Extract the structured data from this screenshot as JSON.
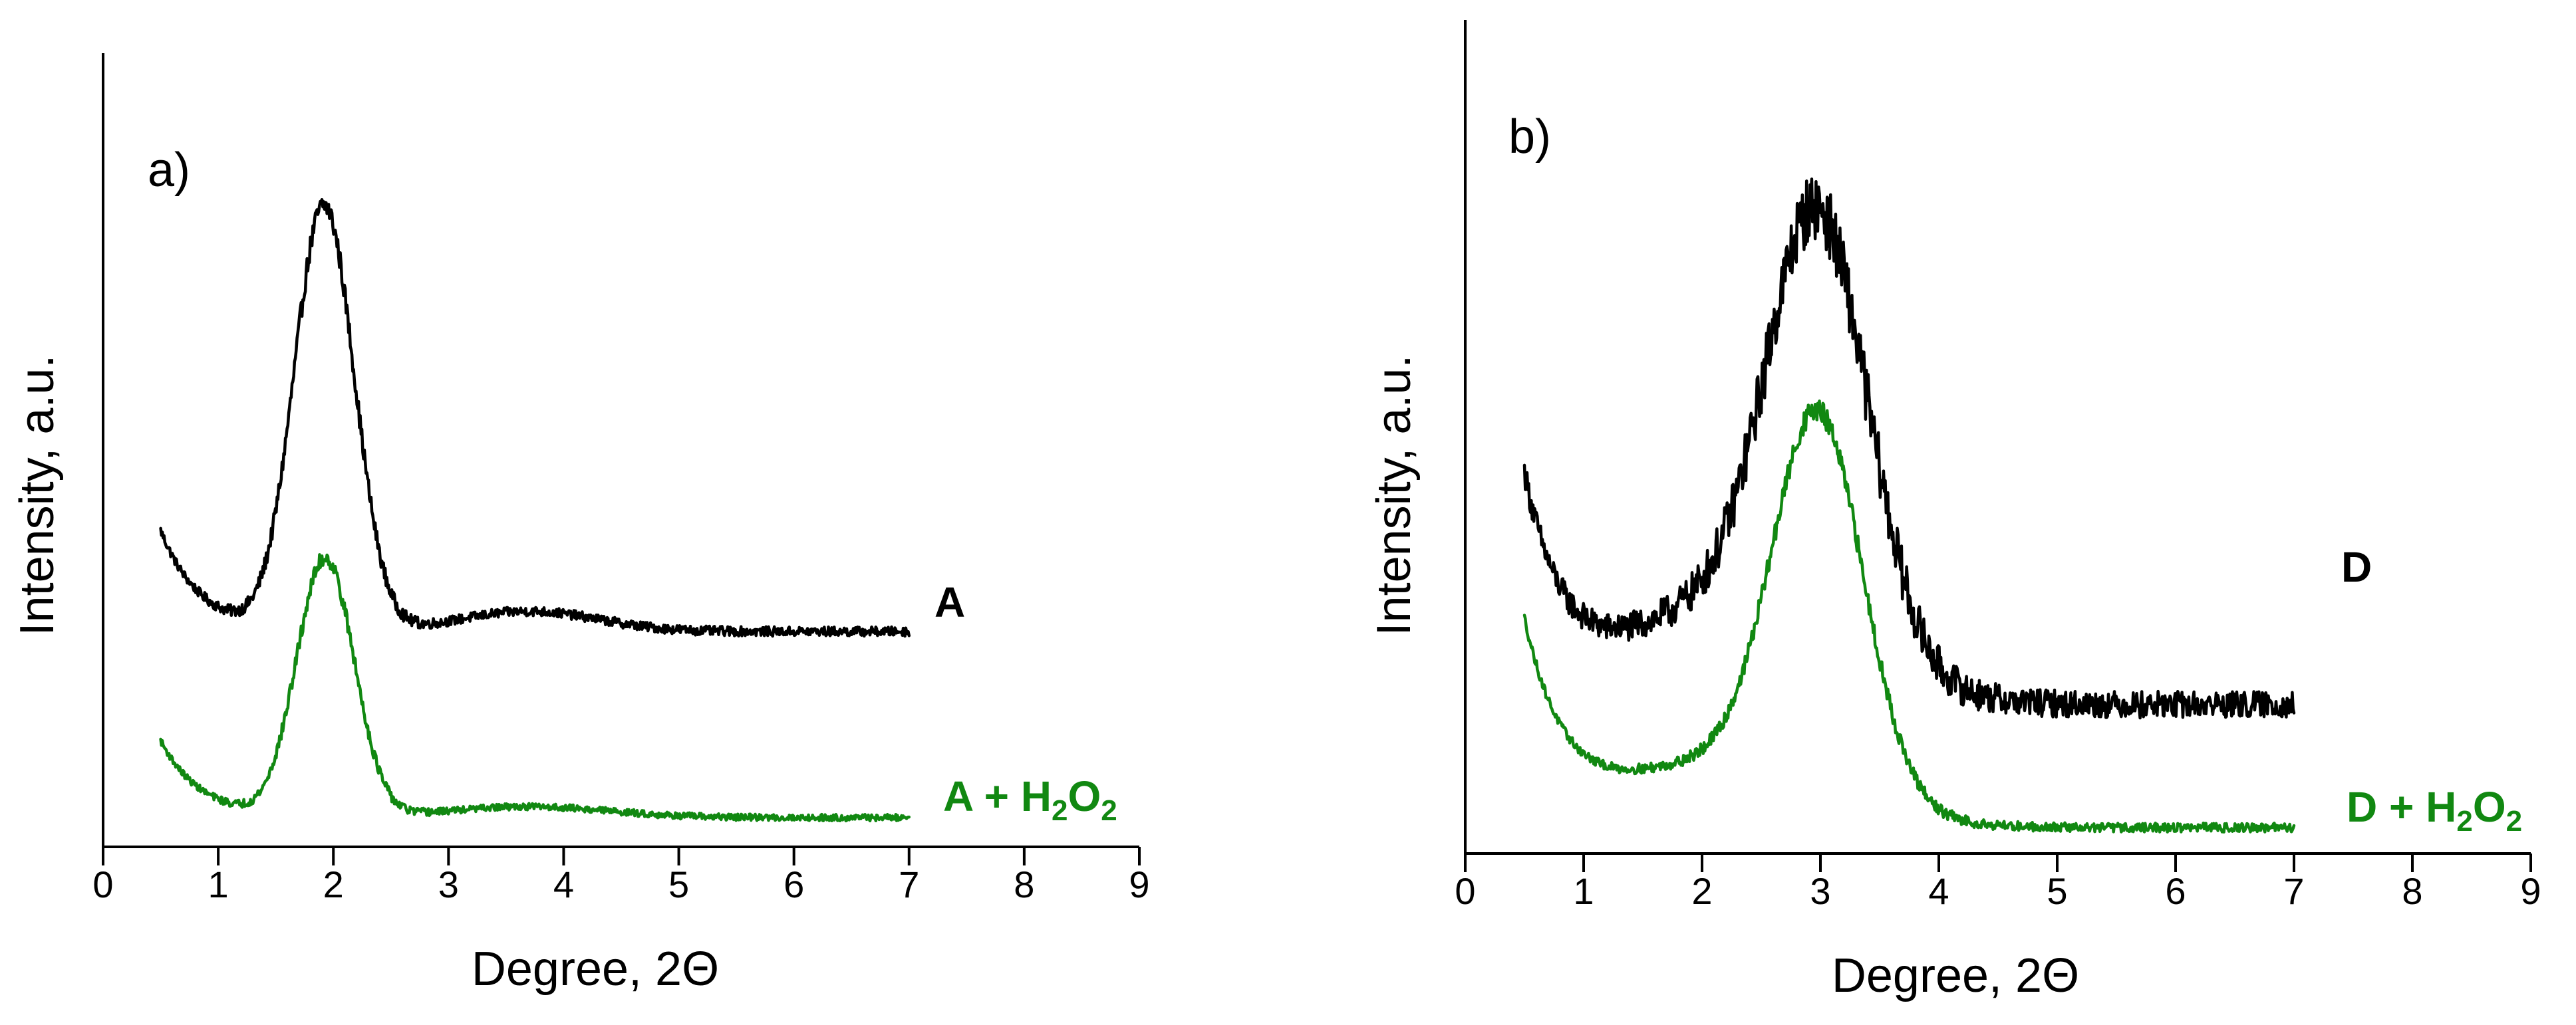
{
  "colors": {
    "black_series": "#000000",
    "green_series": "#118811"
  },
  "chart_data": [
    {
      "type": "line",
      "panel_label": "a)",
      "xlabel": "Degree, 2Θ",
      "ylabel": "Intensity, a.u.",
      "xlim": [
        0,
        9
      ],
      "ylim": [
        0,
        1
      ],
      "x_ticks": [
        "0",
        "1",
        "2",
        "3",
        "4",
        "5",
        "6",
        "7",
        "8",
        "9"
      ],
      "y_ticks": [],
      "series": [
        {
          "name": "A",
          "label_parts": [
            "A"
          ],
          "color_key": "black_series",
          "x_range": [
            0.5,
            7.0
          ],
          "baseline": 0.28,
          "start_level": 0.43,
          "end_level": 0.28,
          "noise": 0.007,
          "peaks": [
            {
              "center": 1.92,
              "width": 0.26,
              "height": 0.63
            },
            {
              "center": 3.7,
              "width": 0.6,
              "height": 0.03
            }
          ]
        },
        {
          "name": "A + H2O2",
          "label_parts": [
            "A + H",
            "2",
            "O",
            "2"
          ],
          "color_key": "green_series",
          "x_range": [
            0.5,
            7.0
          ],
          "baseline": 0.04,
          "start_level": 0.18,
          "end_level": 0.04,
          "noise": 0.006,
          "peaks": [
            {
              "center": 1.93,
              "width": 0.25,
              "height": 0.47
            },
            {
              "center": 3.7,
              "width": 0.7,
              "height": 0.02
            }
          ]
        }
      ]
    },
    {
      "type": "line",
      "panel_label": "b)",
      "xlabel": "Degree, 2Θ",
      "ylabel": "Intensity, a.u.",
      "xlim": [
        0,
        9
      ],
      "ylim": [
        0,
        1
      ],
      "x_ticks": [
        "0",
        "1",
        "2",
        "3",
        "4",
        "5",
        "6",
        "7",
        "8",
        "9"
      ],
      "y_ticks": [],
      "series": [
        {
          "name": "D",
          "label_parts": [
            "D"
          ],
          "color_key": "black_series",
          "x_range": [
            0.5,
            7.0
          ],
          "baseline": 0.35,
          "start_level": 0.6,
          "end_level": 0.34,
          "noise": 0.016,
          "peaks": [
            {
              "center": 2.98,
              "width": 0.42,
              "height": 0.5
            },
            {
              "center": 2.3,
              "width": 0.9,
              "height": 0.12
            }
          ]
        },
        {
          "name": "D + H2O2",
          "label_parts": [
            "D + H",
            "2",
            "O",
            "2"
          ],
          "color_key": "green_series",
          "x_range": [
            0.5,
            7.0
          ],
          "baseline": 0.05,
          "start_level": 0.36,
          "end_level": 0.05,
          "noise": 0.007,
          "peaks": [
            {
              "center": 2.98,
              "width": 0.38,
              "height": 0.58
            },
            {
              "center": 2.2,
              "width": 0.9,
              "height": 0.1
            }
          ]
        }
      ]
    }
  ]
}
